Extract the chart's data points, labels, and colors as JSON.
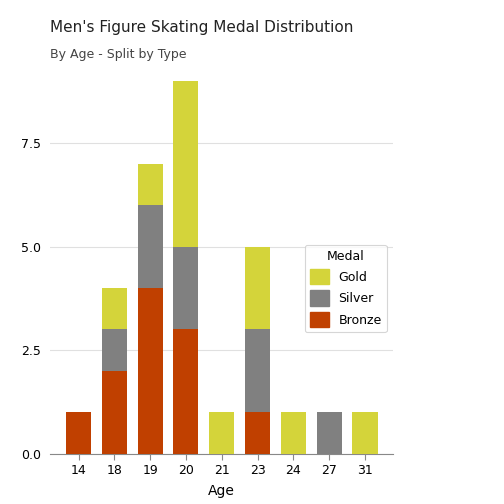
{
  "title": "Men's Figure Skating Medal Distribution",
  "subtitle": "By Age - Split by Type",
  "xlabel": "Age",
  "ylabel": "",
  "ages": [
    14,
    18,
    19,
    20,
    21,
    23,
    24,
    27,
    31
  ],
  "bronze": [
    1,
    2,
    4,
    3,
    0,
    1,
    0,
    0,
    0
  ],
  "silver": [
    0,
    1,
    2,
    2,
    0,
    2,
    0,
    1,
    0
  ],
  "gold": [
    0,
    1,
    1,
    4,
    1,
    2,
    1,
    0,
    1
  ],
  "gold_color": "#D4D43A",
  "silver_color": "#808080",
  "bronze_color": "#C04000",
  "background_color": "#ffffff",
  "bar_width": 0.7,
  "title_fontsize": 11,
  "subtitle_fontsize": 9,
  "axis_label_fontsize": 10,
  "tick_fontsize": 9,
  "legend_title": "Medal",
  "ylim": [
    0,
    9.5
  ]
}
